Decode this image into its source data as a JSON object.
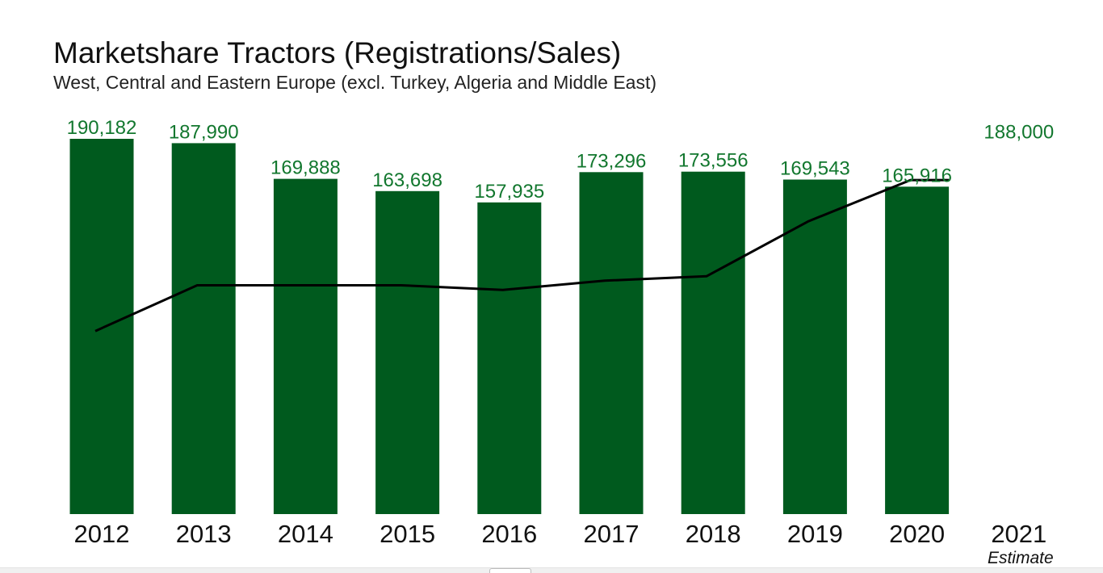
{
  "chart_data": {
    "type": "bar",
    "title": "Marketshare Tractors (Registrations/Sales)",
    "subtitle": "West, Central and Eastern Europe (excl. Turkey, Algeria and Middle East)",
    "categories": [
      "2012",
      "2013",
      "2014",
      "2015",
      "2016",
      "2017",
      "2018",
      "2019",
      "2020",
      "2021"
    ],
    "category_notes": {
      "2021": "Estimate"
    },
    "series": [
      {
        "kind": "bar",
        "values": [
          190182,
          187990,
          169888,
          163698,
          157935,
          173296,
          173556,
          169543,
          165916,
          188000
        ],
        "value_labels": [
          "190,182",
          "187,990",
          "169,888",
          "163,698",
          "157,935",
          "173,296",
          "173,556",
          "169,543",
          "165,916",
          "188,000"
        ],
        "color": "#005a1e",
        "label_color": "#12772e"
      },
      {
        "kind": "line",
        "values": [
          0.4,
          0.5,
          0.5,
          0.5,
          0.49,
          0.51,
          0.52,
          0.64,
          0.73,
          null
        ],
        "color": "#000000"
      }
    ],
    "ylim": [
      0,
      190182
    ],
    "bar_drawn_for": [
      true,
      true,
      true,
      true,
      true,
      true,
      true,
      true,
      true,
      false
    ],
    "grid": false,
    "legend": "none"
  }
}
